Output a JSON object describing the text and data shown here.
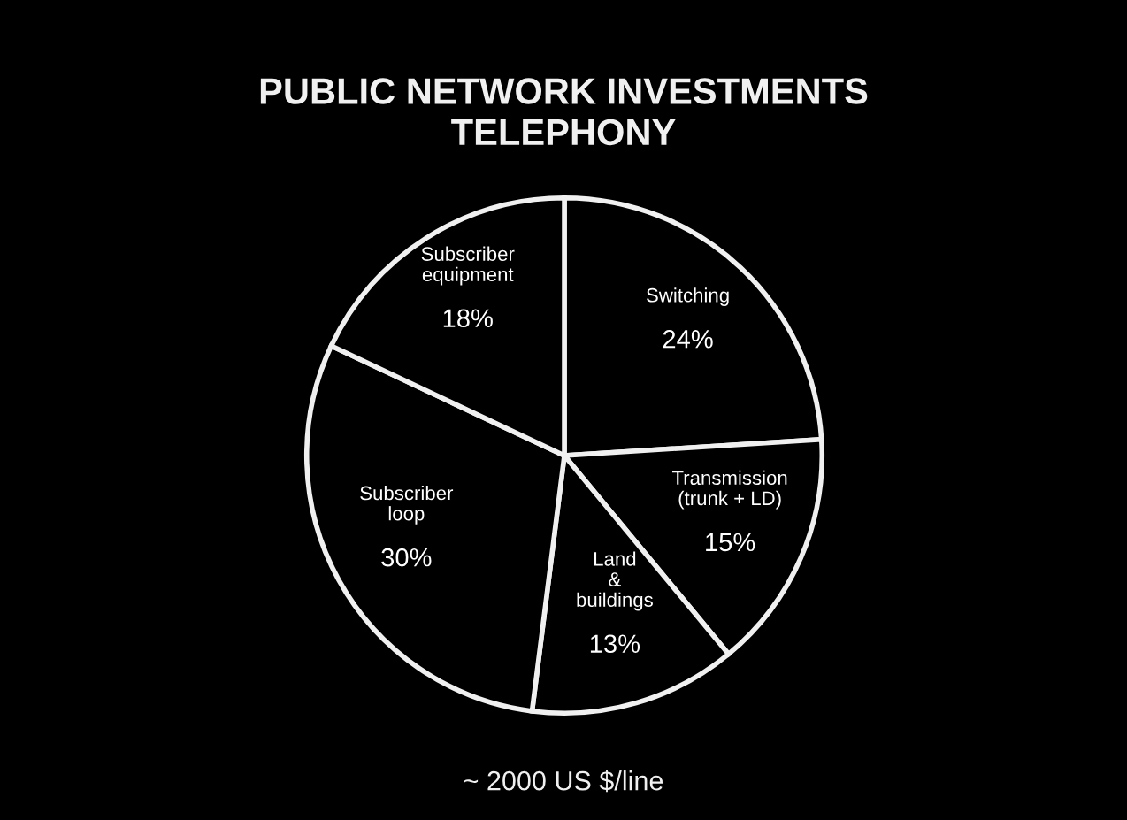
{
  "chart_data": {
    "type": "pie",
    "title": "PUBLIC NETWORK INVESTMENTS",
    "subtitle": "TELEPHONY",
    "categories": [
      "Switching",
      "Transmission\n(trunk + LD)",
      "Land\n&\nbuildings",
      "Subscriber\nloop",
      "Subscriber\nequipment"
    ],
    "values": [
      24,
      15,
      13,
      30,
      18
    ],
    "value_labels": [
      "24%",
      "15%",
      "13%",
      "30%",
      "18%"
    ],
    "colors": [
      "#000000",
      "#000000",
      "#000000",
      "#000000",
      "#000000"
    ],
    "annotations": [
      "~ 2000 US $/line"
    ]
  }
}
